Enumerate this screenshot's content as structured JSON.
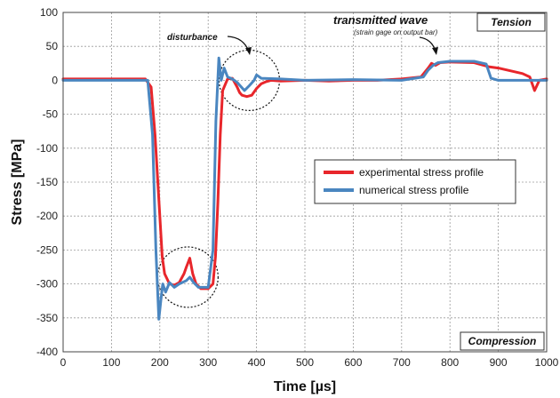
{
  "chart_data": {
    "type": "line",
    "xlabel": "Time [µs]",
    "ylabel": "Stress [MPa]",
    "xlim": [
      0,
      1000
    ],
    "ylim": [
      -400,
      100
    ],
    "x_ticks": [
      "0",
      "100",
      "200",
      "300",
      "400",
      "500",
      "600",
      "700",
      "800",
      "900",
      "1000"
    ],
    "y_ticks": [
      "100",
      "50",
      "0",
      "-50",
      "-100",
      "-150",
      "-200",
      "-250",
      "-300",
      "-350",
      "-400"
    ],
    "grid": true,
    "legend_position": "center-right",
    "series": [
      {
        "name": "experimental stress profile",
        "color": "#e8262b",
        "x": [
          0,
          170,
          182,
          190,
          200,
          205,
          210,
          220,
          230,
          240,
          250,
          255,
          262,
          268,
          275,
          285,
          300,
          310,
          315,
          320,
          325,
          330,
          340,
          350,
          360,
          365,
          370,
          380,
          390,
          400,
          410,
          420,
          430,
          450,
          500,
          550,
          600,
          650,
          700,
          740,
          755,
          762,
          770,
          780,
          800,
          850,
          870,
          880,
          900,
          950,
          965,
          975,
          985,
          1000
        ],
        "y": [
          2,
          2,
          -10,
          -80,
          -200,
          -260,
          -285,
          -300,
          -302,
          -298,
          -285,
          -275,
          -262,
          -285,
          -300,
          -307,
          -307,
          -300,
          -260,
          -180,
          -80,
          -15,
          2,
          3,
          -10,
          -18,
          -22,
          -24,
          -22,
          -12,
          -5,
          -2,
          0,
          -1,
          0,
          -1,
          0,
          0,
          2,
          5,
          18,
          25,
          22,
          26,
          27,
          26,
          22,
          20,
          18,
          10,
          5,
          -15,
          0,
          2
        ]
      },
      {
        "name": "numerical stress profile",
        "color": "#4a86c0",
        "x": [
          0,
          175,
          185,
          192,
          198,
          202,
          206,
          212,
          220,
          230,
          240,
          255,
          262,
          270,
          280,
          300,
          310,
          316,
          322,
          327,
          333,
          340,
          350,
          360,
          375,
          385,
          395,
          400,
          410,
          450,
          500,
          600,
          700,
          745,
          755,
          765,
          775,
          800,
          850,
          875,
          885,
          900,
          950,
          1000
        ],
        "y": [
          0,
          0,
          -80,
          -250,
          -352,
          -325,
          -300,
          -312,
          -298,
          -305,
          -300,
          -295,
          -290,
          -298,
          -305,
          -305,
          -250,
          -60,
          33,
          0,
          18,
          5,
          2,
          -3,
          -15,
          -8,
          0,
          8,
          3,
          2,
          0,
          1,
          0,
          5,
          15,
          22,
          26,
          28,
          28,
          24,
          3,
          0,
          0,
          0
        ]
      }
    ],
    "annotations": {
      "disturbance": "disturbance",
      "transmitted_wave": "transmitted wave",
      "strain_gage_note": "(strain gage on output bar)",
      "tension": "Tension",
      "compression": "Compression"
    }
  }
}
